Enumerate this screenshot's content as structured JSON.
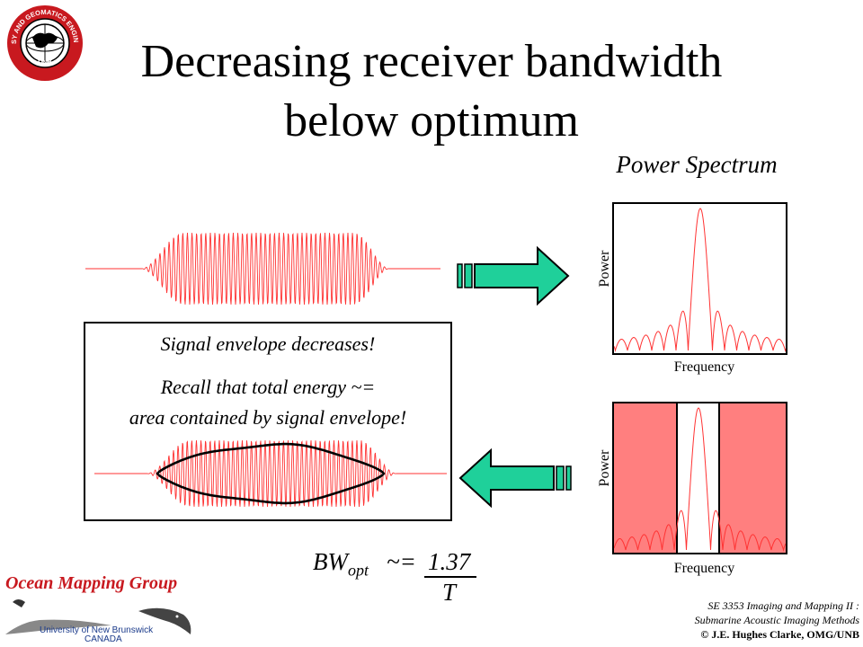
{
  "title_line1": "Decreasing receiver bandwidth",
  "title_line2": "below optimum",
  "spectrum": {
    "title": "Power Spectrum",
    "ylabel": "Power",
    "xlabel": "Frequency"
  },
  "filtered_spectrum": {
    "ylabel": "Power",
    "xlabel": "Frequency"
  },
  "note": {
    "line1": "Signal envelope decreases!",
    "line2": "Recall that total energy ~=",
    "line3": "area contained by signal envelope!"
  },
  "formula": {
    "lhs_main": "BW",
    "lhs_sub": "opt",
    "operator": "~=",
    "numerator": "1.37",
    "denominator": "T"
  },
  "logo": {
    "seal_top_text": "GEODESY AND GEOMATICS ENGINEERING",
    "seal_bottom_text": "UNB",
    "group_name": "Ocean Mapping Group",
    "university": "University of New Brunswick",
    "country": "CANADA"
  },
  "footer": {
    "course_line1": "SE 3353 Imaging and Mapping II :",
    "course_line2": "Submarine Acoustic Imaging Methods",
    "copyright": "© J.E. Hughes Clarke, OMG/UNB"
  },
  "colors": {
    "signal": "#ff3333",
    "arrow_fill": "#1fd09a",
    "filter_shade": "#ff7f7f"
  }
}
